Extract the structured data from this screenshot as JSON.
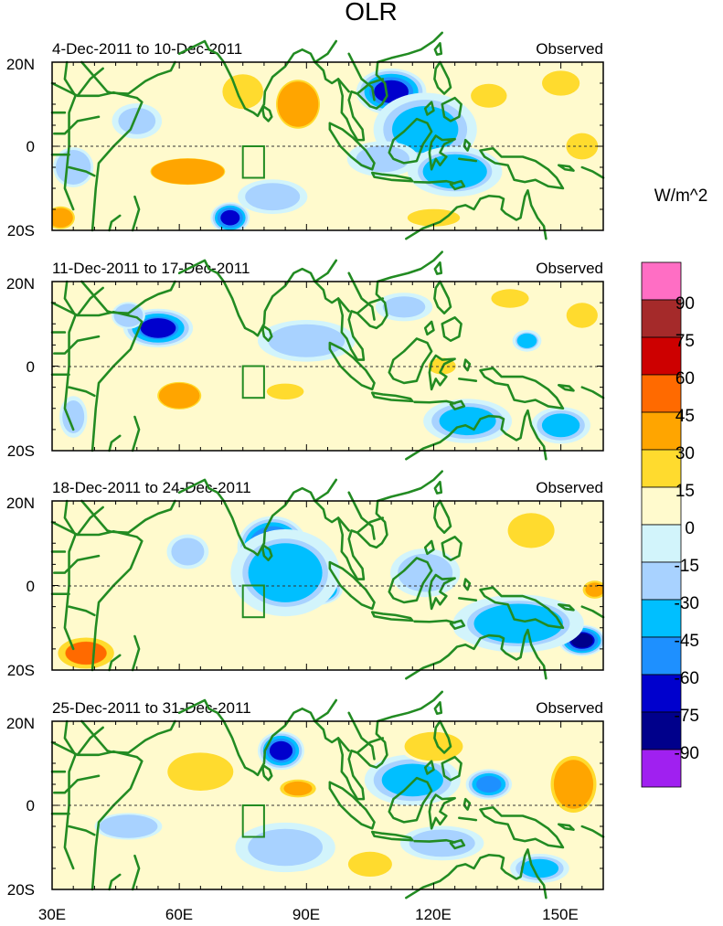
{
  "chart_data": {
    "type": "heatmap",
    "title": "OLR",
    "units_label": "W/m^2",
    "xlabel": "",
    "ylabel": "",
    "x_range": [
      30,
      160
    ],
    "y_range": [
      -20,
      20
    ],
    "x_ticks": [
      {
        "value": 30,
        "label": "30E"
      },
      {
        "value": 60,
        "label": "60E"
      },
      {
        "value": 90,
        "label": "90E"
      },
      {
        "value": 120,
        "label": "120E"
      },
      {
        "value": 150,
        "label": "150E"
      }
    ],
    "y_ticks": [
      {
        "value": 20,
        "label": "20N"
      },
      {
        "value": 0,
        "label": "0"
      },
      {
        "value": -20,
        "label": "20S"
      }
    ],
    "box_region": {
      "lon": [
        75,
        80
      ],
      "lat": [
        -7.5,
        0
      ]
    },
    "colorbar": {
      "labels": [
        "90",
        "75",
        "60",
        "45",
        "30",
        "15",
        "0",
        "-15",
        "-30",
        "-45",
        "-60",
        "-75",
        "-90"
      ],
      "colors": [
        "#ff6ec4",
        "#a52a2a",
        "#cd0000",
        "#ff6a00",
        "#ffa500",
        "#ffdb2e",
        "#fffacd",
        "#d2f4fb",
        "#a8d2ff",
        "#00bfff",
        "#1e90ff",
        "#0000cd",
        "#00008b",
        "#a020f0"
      ]
    },
    "panels": [
      {
        "period": "4-Dec-2011 to 10-Dec-2011",
        "label": "Observed",
        "blobs": [
          {
            "lon": 110,
            "lat": 13,
            "rlon": 9,
            "rlat": 6,
            "value": -70
          },
          {
            "lon": 118,
            "lat": 4,
            "rlon": 14,
            "rlat": 10,
            "value": -40
          },
          {
            "lon": 108,
            "lat": -3,
            "rlon": 10,
            "rlat": 5,
            "value": -30
          },
          {
            "lon": 125,
            "lat": -6,
            "rlon": 13,
            "rlat": 7,
            "value": -35
          },
          {
            "lon": 72,
            "lat": -17,
            "rlon": 5,
            "rlat": 4,
            "value": -75
          },
          {
            "lon": 82,
            "lat": -12,
            "rlon": 10,
            "rlat": 5,
            "value": -25
          },
          {
            "lon": 50,
            "lat": 6,
            "rlon": 7,
            "rlat": 5,
            "value": -30
          },
          {
            "lon": 35,
            "lat": -5,
            "rlon": 6,
            "rlat": 6,
            "value": -20
          },
          {
            "lon": 88,
            "lat": 10,
            "rlon": 8,
            "rlat": 9,
            "value": 32
          },
          {
            "lon": 62,
            "lat": -6,
            "rlon": 14,
            "rlat": 5,
            "value": 30
          },
          {
            "lon": 75,
            "lat": 13,
            "rlon": 7,
            "rlat": 6,
            "value": 20
          },
          {
            "lon": 155,
            "lat": 0,
            "rlon": 6,
            "rlat": 5,
            "value": 28
          },
          {
            "lon": 133,
            "lat": 12,
            "rlon": 6,
            "rlat": 4,
            "value": 18
          },
          {
            "lon": 150,
            "lat": 15,
            "rlon": 6,
            "rlat": 4,
            "value": 15
          },
          {
            "lon": 32,
            "lat": -17,
            "rlon": 5,
            "rlat": 4,
            "value": 35
          },
          {
            "lon": 120,
            "lat": -17,
            "rlon": 9,
            "rlat": 3,
            "value": 20
          }
        ]
      },
      {
        "period": "11-Dec-2011 to 17-Dec-2011",
        "label": "Observed",
        "blobs": [
          {
            "lon": 55,
            "lat": 9,
            "rlon": 9,
            "rlat": 5,
            "value": -65
          },
          {
            "lon": 48,
            "lat": 12,
            "rlon": 5,
            "rlat": 4,
            "value": -20
          },
          {
            "lon": 90,
            "lat": 6,
            "rlon": 14,
            "rlat": 6,
            "value": -25
          },
          {
            "lon": 113,
            "lat": 14,
            "rlon": 8,
            "rlat": 4,
            "value": -30
          },
          {
            "lon": 128,
            "lat": -13,
            "rlon": 12,
            "rlat": 6,
            "value": -40
          },
          {
            "lon": 150,
            "lat": -14,
            "rlon": 8,
            "rlat": 5,
            "value": -40
          },
          {
            "lon": 142,
            "lat": 6,
            "rlon": 4,
            "rlat": 3,
            "value": -35
          },
          {
            "lon": 35,
            "lat": -12,
            "rlon": 4,
            "rlat": 6,
            "value": -25
          },
          {
            "lon": 60,
            "lat": -7,
            "rlon": 8,
            "rlat": 5,
            "value": 32
          },
          {
            "lon": 85,
            "lat": -6,
            "rlon": 7,
            "rlat": 3,
            "value": 28
          },
          {
            "lon": 122,
            "lat": 0,
            "rlon": 5,
            "rlat": 3,
            "value": 25
          },
          {
            "lon": 138,
            "lat": 16,
            "rlon": 6,
            "rlat": 3,
            "value": 15
          },
          {
            "lon": 155,
            "lat": 12,
            "rlon": 5,
            "rlat": 4,
            "value": 15
          }
        ]
      },
      {
        "period": "18-Dec-2011 to 24-Dec-2011",
        "label": "Observed",
        "blobs": [
          {
            "lon": 82,
            "lat": 9,
            "rlon": 9,
            "rlat": 8,
            "value": -80
          },
          {
            "lon": 92,
            "lat": -1,
            "rlon": 7,
            "rlat": 4,
            "value": -80
          },
          {
            "lon": 85,
            "lat": 3,
            "rlon": 15,
            "rlat": 12,
            "value": -35
          },
          {
            "lon": 132,
            "lat": -10,
            "rlon": 8,
            "rlat": 4,
            "value": -75
          },
          {
            "lon": 155,
            "lat": -13,
            "rlon": 6,
            "rlat": 4,
            "value": -80
          },
          {
            "lon": 140,
            "lat": -9,
            "rlon": 18,
            "rlat": 8,
            "value": -35
          },
          {
            "lon": 118,
            "lat": 3,
            "rlon": 10,
            "rlat": 7,
            "value": -25
          },
          {
            "lon": 62,
            "lat": 8,
            "rlon": 6,
            "rlat": 5,
            "value": -25
          },
          {
            "lon": 38,
            "lat": -16,
            "rlon": 9,
            "rlat": 5,
            "value": 45
          },
          {
            "lon": 158,
            "lat": -1,
            "rlon": 4,
            "rlat": 3,
            "value": 40
          },
          {
            "lon": 143,
            "lat": 13,
            "rlon": 8,
            "rlat": 6,
            "value": 20
          },
          {
            "lon": 100,
            "lat": -14,
            "rlon": 7,
            "rlat": 3,
            "value": 12
          }
        ]
      },
      {
        "period": "25-Dec-2011 to 31-Dec-2011",
        "label": "Observed",
        "blobs": [
          {
            "lon": 84,
            "lat": 13,
            "rlon": 6,
            "rlat": 5,
            "value": -70
          },
          {
            "lon": 88,
            "lat": -12,
            "rlon": 6,
            "rlat": 4,
            "value": -70
          },
          {
            "lon": 85,
            "lat": -10,
            "rlon": 14,
            "rlat": 7,
            "value": -30
          },
          {
            "lon": 115,
            "lat": 6,
            "rlon": 13,
            "rlat": 7,
            "value": -40
          },
          {
            "lon": 133,
            "lat": 5,
            "rlon": 6,
            "rlat": 4,
            "value": -60
          },
          {
            "lon": 145,
            "lat": -15,
            "rlon": 8,
            "rlat": 4,
            "value": -40
          },
          {
            "lon": 122,
            "lat": -9,
            "rlon": 12,
            "rlat": 5,
            "value": -25
          },
          {
            "lon": 48,
            "lat": -5,
            "rlon": 10,
            "rlat": 4,
            "value": -20
          },
          {
            "lon": 65,
            "lat": 8,
            "rlon": 12,
            "rlat": 7,
            "value": 25
          },
          {
            "lon": 88,
            "lat": 4,
            "rlon": 6,
            "rlat": 3,
            "value": 40
          },
          {
            "lon": 153,
            "lat": 5,
            "rlon": 8,
            "rlat": 10,
            "value": 35
          },
          {
            "lon": 120,
            "lat": 14,
            "rlon": 10,
            "rlat": 5,
            "value": 20
          },
          {
            "lon": 105,
            "lat": -14,
            "rlon": 7,
            "rlat": 4,
            "value": 15
          }
        ]
      }
    ]
  }
}
